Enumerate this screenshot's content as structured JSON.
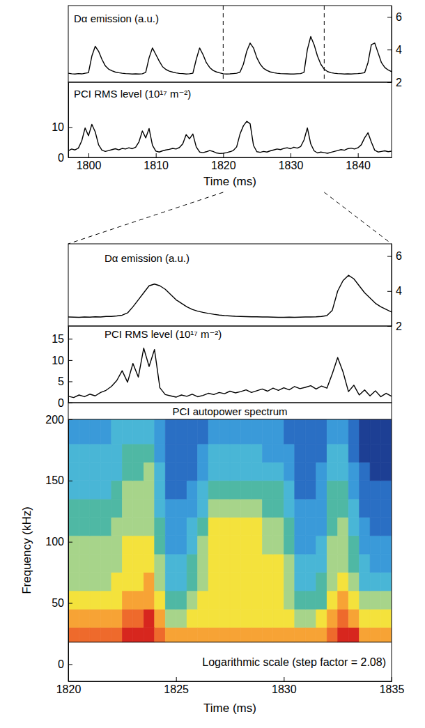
{
  "chart_data": [
    {
      "type": "line",
      "ylabel": "Dα emission (a.u.)",
      "color": "#000000",
      "axis": "y2",
      "xlim": [
        1797,
        1845
      ],
      "y2lim": [
        2,
        6.7
      ],
      "y2ticks": [
        2,
        4,
        6
      ],
      "vlines": [
        1820,
        1835
      ],
      "x": [
        1797,
        1797.5,
        1798,
        1798.5,
        1799,
        1799.5,
        1800,
        1800.5,
        1801,
        1801.5,
        1802,
        1802.5,
        1803,
        1803.5,
        1804,
        1804.5,
        1805,
        1805.5,
        1806,
        1806.5,
        1807,
        1807.5,
        1808,
        1808.5,
        1809,
        1809.5,
        1810,
        1810.5,
        1811,
        1811.5,
        1812,
        1812.5,
        1813,
        1813.5,
        1814,
        1814.5,
        1815,
        1815.5,
        1816,
        1816.5,
        1817,
        1817.5,
        1818,
        1818.5,
        1819,
        1819.5,
        1820,
        1820.5,
        1821,
        1821.5,
        1822,
        1822.5,
        1823,
        1823.5,
        1824,
        1824.5,
        1825,
        1825.5,
        1826,
        1826.5,
        1827,
        1827.5,
        1828,
        1828.5,
        1829,
        1829.5,
        1830,
        1830.5,
        1831,
        1831.5,
        1832,
        1832.5,
        1833,
        1833.5,
        1834,
        1834.5,
        1835,
        1835.5,
        1836,
        1836.5,
        1837,
        1837.5,
        1838,
        1838.5,
        1839,
        1839.5,
        1840,
        1840.5,
        1841,
        1841.5,
        1842,
        1842.5,
        1843,
        1843.5,
        1844,
        1844.5,
        1845
      ],
      "values": [
        2.55,
        2.52,
        2.5,
        2.53,
        2.51,
        2.55,
        2.58,
        3.6,
        4.2,
        3.9,
        3.4,
        3.0,
        2.8,
        2.7,
        2.62,
        2.58,
        2.55,
        2.53,
        2.52,
        2.5,
        2.51,
        2.5,
        2.52,
        2.6,
        3.5,
        4.1,
        3.7,
        3.3,
        2.95,
        2.78,
        2.68,
        2.62,
        2.57,
        2.54,
        2.53,
        2.5,
        2.52,
        2.55,
        3.4,
        4.1,
        3.7,
        3.2,
        2.9,
        2.72,
        2.63,
        2.57,
        2.52,
        2.5,
        2.51,
        2.53,
        2.55,
        2.62,
        3.1,
        3.9,
        4.4,
        4.1,
        3.5,
        3.1,
        2.85,
        2.72,
        2.63,
        2.58,
        2.55,
        2.53,
        2.52,
        2.51,
        2.5,
        2.5,
        2.52,
        2.53,
        2.6,
        4.0,
        4.8,
        4.3,
        3.6,
        3.1,
        2.8,
        2.65,
        2.58,
        2.55,
        2.53,
        2.52,
        2.5,
        2.51,
        2.5,
        2.52,
        2.53,
        2.55,
        2.58,
        3.2,
        4.3,
        4.4,
        3.8,
        3.2,
        2.9,
        2.75,
        2.65
      ]
    },
    {
      "type": "line",
      "ylabel": "PCI RMS level (10¹⁷ m⁻²)",
      "color": "#000000",
      "xlim": [
        1797,
        1845
      ],
      "xticks": [
        1800,
        1810,
        1820,
        1830,
        1840
      ],
      "xlabel": "Time (ms)",
      "ylim": [
        0,
        25
      ],
      "yticks": [
        0,
        10
      ],
      "x": [
        1797,
        1797.5,
        1798,
        1798.5,
        1799,
        1799.5,
        1800,
        1800.5,
        1801,
        1801.5,
        1802,
        1802.5,
        1803,
        1803.5,
        1804,
        1804.5,
        1805,
        1805.5,
        1806,
        1806.5,
        1807,
        1807.5,
        1808,
        1808.5,
        1809,
        1809.5,
        1810,
        1810.5,
        1811,
        1811.5,
        1812,
        1812.5,
        1813,
        1813.5,
        1814,
        1814.5,
        1815,
        1815.5,
        1816,
        1816.5,
        1817,
        1817.5,
        1818,
        1818.5,
        1819,
        1819.5,
        1820,
        1820.5,
        1821,
        1821.5,
        1822,
        1822.5,
        1823,
        1823.5,
        1824,
        1824.5,
        1825,
        1825.5,
        1826,
        1826.5,
        1827,
        1827.5,
        1828,
        1828.5,
        1829,
        1829.5,
        1830,
        1830.5,
        1831,
        1831.5,
        1832,
        1832.5,
        1833,
        1833.5,
        1834,
        1834.5,
        1835,
        1835.5,
        1836,
        1836.5,
        1837,
        1837.5,
        1838,
        1838.5,
        1839,
        1839.5,
        1840,
        1840.5,
        1841,
        1841.5,
        1842,
        1842.5,
        1843,
        1843.5,
        1844,
        1844.5,
        1845
      ],
      "values": [
        2.2,
        2.8,
        2.5,
        3.1,
        5.5,
        9.8,
        7.2,
        11.0,
        8.5,
        4.2,
        2.4,
        2.0,
        2.3,
        2.6,
        2.9,
        2.5,
        3.0,
        2.8,
        3.2,
        2.9,
        3.4,
        5.2,
        8.8,
        6.5,
        9.6,
        4.0,
        2.1,
        1.8,
        2.2,
        2.5,
        2.7,
        3.0,
        2.8,
        3.3,
        4.5,
        7.6,
        6.2,
        7.8,
        3.5,
        1.8,
        1.6,
        1.9,
        2.3,
        2.0,
        1.5,
        1.3,
        1.4,
        1.6,
        1.9,
        2.3,
        3.5,
        7.8,
        10.5,
        12.0,
        11.2,
        4.0,
        1.9,
        1.7,
        2.0,
        1.8,
        2.2,
        2.5,
        2.8,
        2.6,
        3.0,
        3.2,
        2.9,
        3.4,
        3.1,
        3.6,
        5.8,
        9.8,
        4.5,
        2.2,
        1.5,
        1.8,
        1.6,
        1.4,
        1.7,
        2.0,
        2.3,
        2.6,
        2.4,
        2.9,
        3.1,
        2.8,
        3.2,
        4.2,
        6.5,
        8.2,
        5.1,
        2.4,
        1.8,
        2.0,
        2.2,
        1.9,
        2.1
      ]
    },
    {
      "type": "line",
      "ylabel": "Dα emission (a.u.)",
      "color": "#000000",
      "axis": "y2",
      "xlim": [
        1820,
        1835
      ],
      "y2lim": [
        2,
        6.7
      ],
      "y2ticks": [
        2,
        4,
        6
      ],
      "x": [
        1820,
        1820.25,
        1820.5,
        1820.75,
        1821,
        1821.25,
        1821.5,
        1821.75,
        1822,
        1822.25,
        1822.5,
        1822.75,
        1823,
        1823.25,
        1823.5,
        1823.75,
        1824,
        1824.25,
        1824.5,
        1824.75,
        1825,
        1825.25,
        1825.5,
        1825.75,
        1826,
        1826.25,
        1826.5,
        1826.75,
        1827,
        1827.25,
        1827.5,
        1827.75,
        1828,
        1828.25,
        1828.5,
        1828.75,
        1829,
        1829.25,
        1829.5,
        1829.75,
        1830,
        1830.25,
        1830.5,
        1830.75,
        1831,
        1831.25,
        1831.5,
        1831.75,
        1832,
        1832.25,
        1832.5,
        1832.75,
        1833,
        1833.25,
        1833.5,
        1833.75,
        1834,
        1834.25,
        1834.5,
        1834.75,
        1835
      ],
      "values": [
        2.52,
        2.51,
        2.5,
        2.52,
        2.51,
        2.53,
        2.52,
        2.55,
        2.55,
        2.58,
        2.62,
        2.75,
        3.1,
        3.5,
        3.9,
        4.3,
        4.4,
        4.3,
        4.1,
        3.8,
        3.5,
        3.3,
        3.1,
        2.95,
        2.85,
        2.78,
        2.72,
        2.67,
        2.63,
        2.6,
        2.58,
        2.56,
        2.55,
        2.54,
        2.53,
        2.53,
        2.52,
        2.52,
        2.51,
        2.5,
        2.5,
        2.51,
        2.5,
        2.51,
        2.52,
        2.52,
        2.53,
        2.55,
        2.6,
        2.9,
        4.0,
        4.6,
        4.9,
        4.7,
        4.3,
        3.9,
        3.6,
        3.3,
        3.1,
        2.95,
        2.8
      ]
    },
    {
      "type": "line",
      "ylabel": "PCI RMS level (10¹⁷ m⁻²)",
      "color": "#000000",
      "xlim": [
        1820,
        1835
      ],
      "ylim": [
        0,
        18
      ],
      "yticks": [
        0,
        5,
        10,
        15
      ],
      "x": [
        1820,
        1820.25,
        1820.5,
        1820.75,
        1821,
        1821.25,
        1821.5,
        1821.75,
        1822,
        1822.25,
        1822.5,
        1822.75,
        1823,
        1823.25,
        1823.5,
        1823.75,
        1824,
        1824.25,
        1824.5,
        1824.75,
        1825,
        1825.25,
        1825.5,
        1825.75,
        1826,
        1826.25,
        1826.5,
        1826.75,
        1827,
        1827.25,
        1827.5,
        1827.75,
        1828,
        1828.25,
        1828.5,
        1828.75,
        1829,
        1829.25,
        1829.5,
        1829.75,
        1830,
        1830.25,
        1830.5,
        1830.75,
        1831,
        1831.25,
        1831.5,
        1831.75,
        1832,
        1832.25,
        1832.5,
        1832.75,
        1833,
        1833.25,
        1833.5,
        1833.75,
        1834,
        1834.25,
        1834.5,
        1834.75,
        1835
      ],
      "values": [
        1.5,
        1.2,
        1.8,
        1.4,
        2.0,
        1.6,
        2.4,
        2.9,
        3.8,
        5.2,
        7.5,
        4.8,
        9.2,
        6.0,
        12.8,
        8.5,
        12.5,
        3.5,
        1.9,
        1.6,
        1.3,
        1.8,
        1.5,
        2.0,
        1.4,
        1.7,
        2.2,
        1.9,
        2.4,
        2.1,
        2.7,
        2.3,
        2.6,
        3.0,
        2.4,
        2.8,
        3.2,
        2.7,
        3.4,
        2.9,
        3.5,
        3.0,
        3.8,
        3.3,
        3.6,
        4.0,
        3.2,
        3.9,
        3.4,
        6.8,
        10.6,
        7.2,
        2.6,
        4.1,
        1.8,
        3.0,
        1.6,
        2.8,
        1.4,
        2.2,
        1.5
      ]
    },
    {
      "type": "heatmap",
      "title": "PCI autopower spectrum",
      "annotations": [
        "Logarithmic scale (step factor = 2.08)"
      ],
      "xlabel": "Time (ms)",
      "ylabel": "Frequency (kHz)",
      "xlim": [
        1820,
        1835
      ],
      "xticks": [
        1820,
        1825,
        1830,
        1835
      ],
      "ylim": [
        -14,
        200
      ],
      "yticks": [
        0,
        50,
        100,
        150,
        200
      ],
      "colors": [
        "#1d3f94",
        "#2a6fc4",
        "#3a9ad9",
        "#49b6d6",
        "#4fb8a4",
        "#a7d48a",
        "#f4e23c",
        "#f7a335",
        "#ee6a2c",
        "#d7261e"
      ],
      "x": [
        1820,
        1820.5,
        1821,
        1821.5,
        1822,
        1822.5,
        1823,
        1823.5,
        1824,
        1824.5,
        1825,
        1825.5,
        1826,
        1826.5,
        1827,
        1827.5,
        1828,
        1828.5,
        1829,
        1829.5,
        1830,
        1830.5,
        1831,
        1831.5,
        1832,
        1832.5,
        1833,
        1833.5,
        1834,
        1834.5,
        1835
      ],
      "y": [
        18,
        30,
        45,
        60,
        75,
        90,
        105,
        120,
        135,
        150,
        165,
        180,
        200
      ],
      "z": [
        [
          8,
          8,
          8,
          8,
          8,
          9,
          9,
          9,
          8,
          7,
          7,
          7,
          7,
          7,
          7,
          7,
          7,
          7,
          7,
          7,
          7,
          7,
          7,
          7,
          8,
          9,
          9,
          7,
          7,
          7
        ],
        [
          7,
          7,
          7,
          7,
          7,
          8,
          8,
          9,
          7,
          5,
          5,
          6,
          6,
          6,
          6,
          6,
          6,
          6,
          6,
          6,
          6,
          5,
          5,
          6,
          7,
          8,
          7,
          6,
          6,
          6
        ],
        [
          6,
          6,
          6,
          6,
          6,
          7,
          7,
          7,
          6,
          4,
          4,
          5,
          6,
          6,
          6,
          6,
          6,
          6,
          6,
          6,
          5,
          4,
          4,
          4,
          6,
          7,
          6,
          5,
          5,
          5
        ],
        [
          5,
          5,
          5,
          5,
          6,
          6,
          6,
          7,
          5,
          3,
          3,
          4,
          5,
          6,
          6,
          6,
          6,
          6,
          6,
          6,
          5,
          3,
          3,
          4,
          5,
          6,
          5,
          3,
          3,
          3
        ],
        [
          5,
          5,
          5,
          5,
          5,
          6,
          6,
          6,
          5,
          3,
          3,
          4,
          5,
          6,
          6,
          6,
          6,
          6,
          6,
          6,
          5,
          3,
          3,
          3,
          5,
          5,
          4,
          3,
          2,
          2
        ],
        [
          5,
          5,
          5,
          5,
          5,
          6,
          6,
          6,
          4,
          2,
          2,
          3,
          5,
          6,
          6,
          6,
          6,
          6,
          5,
          5,
          4,
          2,
          2,
          3,
          5,
          5,
          4,
          2,
          2,
          2
        ],
        [
          4,
          4,
          4,
          4,
          5,
          5,
          5,
          5,
          4,
          2,
          2,
          3,
          4,
          6,
          6,
          6,
          6,
          6,
          5,
          5,
          4,
          2,
          2,
          2,
          4,
          5,
          3,
          2,
          1,
          1
        ],
        [
          4,
          4,
          4,
          4,
          4,
          5,
          5,
          5,
          3,
          2,
          2,
          2,
          3,
          5,
          5,
          5,
          5,
          5,
          4,
          4,
          3,
          2,
          2,
          2,
          4,
          4,
          3,
          1,
          1,
          1
        ],
        [
          3,
          3,
          3,
          3,
          4,
          5,
          5,
          5,
          3,
          1,
          1,
          2,
          3,
          4,
          4,
          4,
          4,
          4,
          4,
          4,
          3,
          1,
          1,
          2,
          4,
          4,
          2,
          1,
          1,
          1
        ],
        [
          3,
          3,
          3,
          3,
          3,
          4,
          4,
          5,
          3,
          1,
          1,
          1,
          2,
          3,
          3,
          3,
          3,
          3,
          3,
          3,
          2,
          1,
          1,
          2,
          3,
          3,
          2,
          1,
          0,
          0
        ],
        [
          3,
          3,
          3,
          3,
          3,
          4,
          4,
          4,
          2,
          1,
          1,
          1,
          2,
          3,
          3,
          3,
          3,
          3,
          2,
          2,
          2,
          1,
          1,
          1,
          3,
          3,
          1,
          0,
          0,
          0
        ],
        [
          2,
          2,
          2,
          2,
          3,
          3,
          3,
          3,
          2,
          1,
          1,
          1,
          1,
          2,
          2,
          2,
          2,
          2,
          2,
          2,
          1,
          1,
          1,
          1,
          2,
          2,
          1,
          0,
          0,
          0
        ]
      ]
    }
  ]
}
